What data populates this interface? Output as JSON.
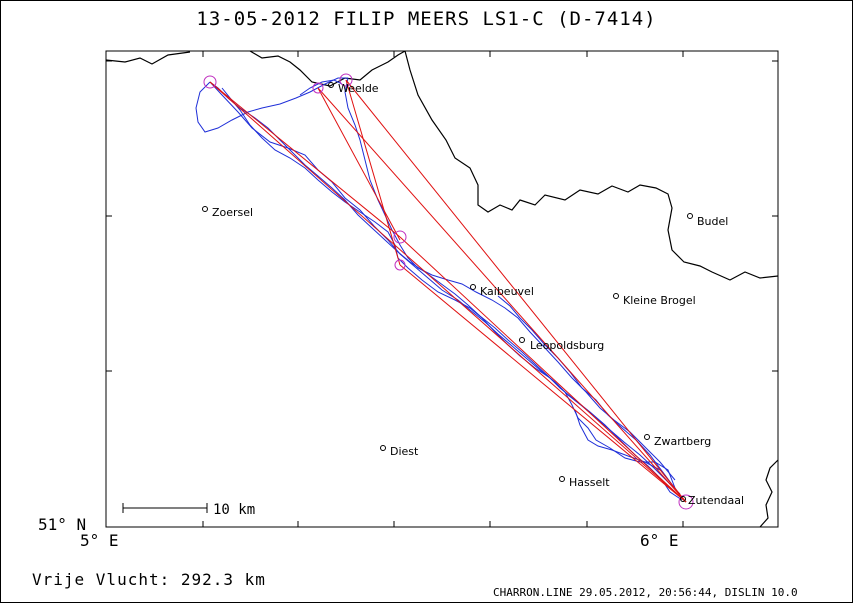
{
  "title": "13-05-2012   FILIP MEERS   LS1-C (D-7414)",
  "axes": {
    "lat_label": "51° N",
    "lon_west_label": "5° E",
    "lon_east_label": "6° E"
  },
  "scale_bar": {
    "label": "10 km",
    "length_km": 10
  },
  "distance": "Vrije Vlucht:  292.3 km",
  "footer": "CHARRON.LINE 29.05.2012, 20:56:44, DISLIN 10.0",
  "cities": [
    {
      "name": "Weelde"
    },
    {
      "name": "Zoersel"
    },
    {
      "name": "Budel"
    },
    {
      "name": "Kaibeuvel"
    },
    {
      "name": "Kleine Brogel"
    },
    {
      "name": "Leopoldsburg"
    },
    {
      "name": "Zwartberg"
    },
    {
      "name": "Diest"
    },
    {
      "name": "Hasselt"
    },
    {
      "name": "Zutendaal"
    }
  ],
  "colors": {
    "track": "#1f2fd8",
    "task": "#e01010",
    "turnpoint": "#c030c0",
    "border": "#000000"
  }
}
